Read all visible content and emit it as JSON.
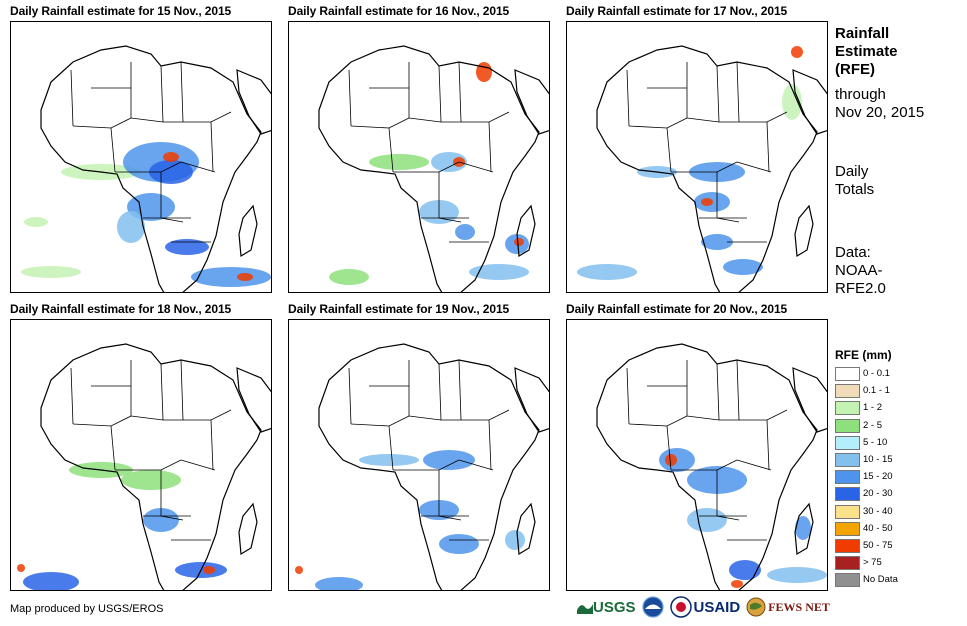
{
  "panels": [
    {
      "title": "Daily Rainfall estimate for 15 Nov., 2015"
    },
    {
      "title": "Daily Rainfall estimate for 16 Nov., 2015"
    },
    {
      "title": "Daily Rainfall estimate for 17 Nov., 2015"
    },
    {
      "title": "Daily Rainfall estimate for 18 Nov., 2015"
    },
    {
      "title": "Daily Rainfall estimate for 19 Nov., 2015"
    },
    {
      "title": "Daily Rainfall estimate for 20 Nov., 2015"
    }
  ],
  "sidebar": {
    "heading_line1": "Rainfall",
    "heading_line2": "Estimate",
    "heading_line3": "(RFE)",
    "through_label": "through",
    "through_date": "Nov 20, 2015",
    "totals_line1": "Daily",
    "totals_line2": "Totals",
    "data_line1": "Data:",
    "data_line2": "NOAA-",
    "data_line3": "RFE2.0"
  },
  "legend": {
    "title": "RFE (mm)",
    "items": [
      {
        "label": "0 - 0.1",
        "color": "#ffffff"
      },
      {
        "label": "0.1 - 1",
        "color": "#f0dcb8"
      },
      {
        "label": "1 - 2",
        "color": "#c4f2b4"
      },
      {
        "label": "2 - 5",
        "color": "#8ee07c"
      },
      {
        "label": "5 - 10",
        "color": "#b4eefa"
      },
      {
        "label": "10 - 15",
        "color": "#82c0ee"
      },
      {
        "label": "15 - 20",
        "color": "#4f94ec"
      },
      {
        "label": "20 - 30",
        "color": "#2964e6"
      },
      {
        "label": "30 - 40",
        "color": "#fae28c"
      },
      {
        "label": "40 - 50",
        "color": "#f4a400"
      },
      {
        "label": "50 - 75",
        "color": "#f03c00"
      },
      {
        "label": "> 75",
        "color": "#a82020"
      },
      {
        "label": "No Data",
        "color": "#909090"
      }
    ]
  },
  "credit": "Map produced by USGS/EROS",
  "logos": {
    "usgs": "USGS",
    "usaid": "USAID",
    "fewsnet": "FEWS NET"
  }
}
